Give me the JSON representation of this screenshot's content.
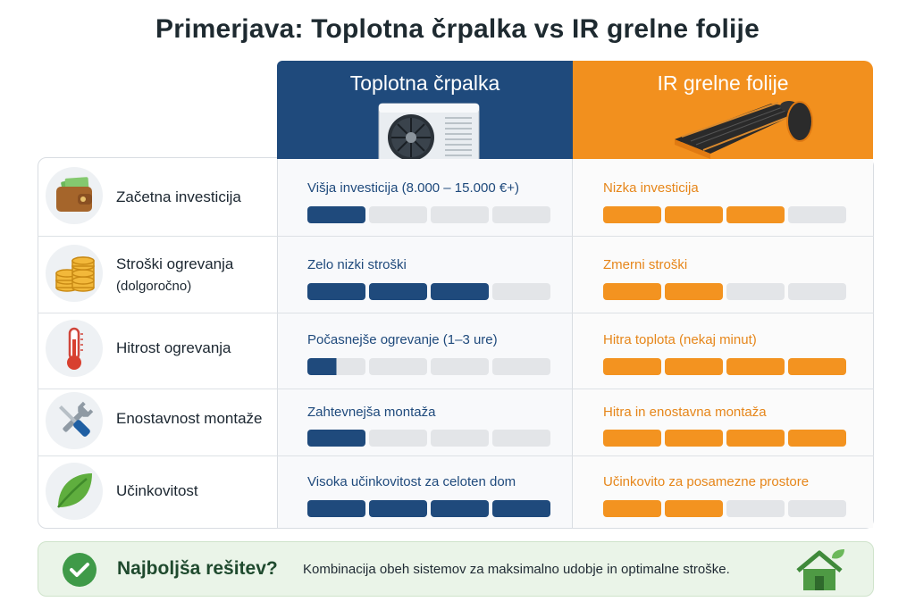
{
  "title": "Primerjava: Toplotna črpalka vs IR grelne folije",
  "columns": {
    "heat_pump": "Toplotna črpalka",
    "ir_film": "IR grelne folije"
  },
  "rows": [
    {
      "category": "Začetna investicija",
      "subcategory": "",
      "icon": "wallet-icon",
      "heat_pump": {
        "text": "Višja investicija (8.000 – 15.000 €+)",
        "level": 1
      },
      "ir_film": {
        "text": "Nizka investicija",
        "level": 3
      }
    },
    {
      "category": "Stroški ogrevanja",
      "subcategory": "(dolgoročno)",
      "icon": "coins-icon",
      "heat_pump": {
        "text": "Zelo nizki stroški",
        "level": 3
      },
      "ir_film": {
        "text": "Zmerni stroški",
        "level": 2
      }
    },
    {
      "category": "Hitrost ogrevanja",
      "subcategory": "",
      "icon": "thermometer-icon",
      "heat_pump": {
        "text": "Počasnejše ogrevanje (1–3 ure)",
        "level": 0.5
      },
      "ir_film": {
        "text": "Hitra toplota (nekaj minut)",
        "level": 4
      }
    },
    {
      "category": "Enostavnost montaže",
      "subcategory": "",
      "icon": "tools-icon",
      "heat_pump": {
        "text": "Zahtevnejša montaža",
        "level": 1
      },
      "ir_film": {
        "text": "Hitra in enostavna montaža",
        "level": 4
      }
    },
    {
      "category": "Učinkovitost",
      "subcategory": "",
      "icon": "leaf-icon",
      "heat_pump": {
        "text": "Visoka učinkovitost za celoten dom",
        "level": 4
      },
      "ir_film": {
        "text": "Učinkovito za posamezne prostore",
        "level": 2
      }
    }
  ],
  "rating_scale_max": 4,
  "banner": {
    "title": "Najboljša rešitev?",
    "text": "Kombinacija obeh sistemov za maksimalno udobje in optimalne stroške.",
    "icon": "check-icon",
    "house_icon": "eco-house-icon"
  },
  "colors": {
    "heat_pump": "#1f4a7c",
    "ir_film": "#f39320",
    "empty": "#e3e5e8",
    "banner_bg": "#eaf4e8",
    "check": "#3f9a48"
  }
}
